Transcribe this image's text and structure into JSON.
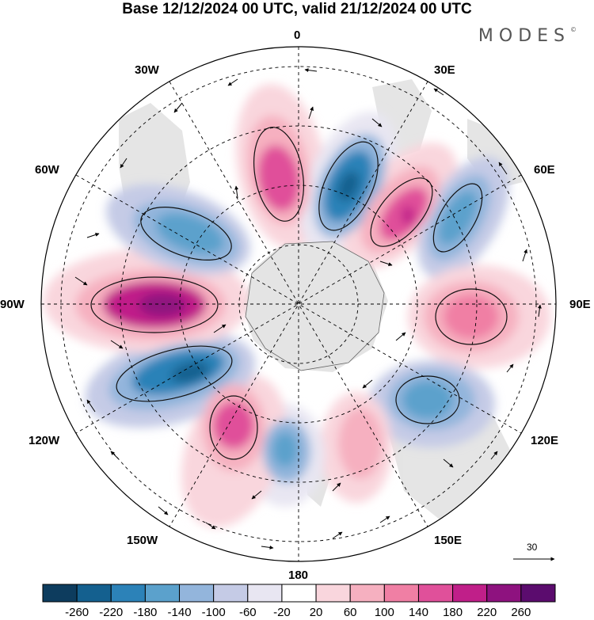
{
  "title": "Base 12/12/2024 00 UTC, valid 21/12/2024 00 UTC",
  "brand": "MODES",
  "brand_mark": "©",
  "meridian_labels": {
    "m0": "0",
    "m30e": "30E",
    "m60e": "60E",
    "m90e": "90E",
    "m120e": "120E",
    "m150e": "150E",
    "m180": "180",
    "m150w": "150W",
    "m120w": "120W",
    "m90w": "90W",
    "m60w": "60W",
    "m30w": "30W"
  },
  "reference_vector": "30",
  "colorbar": {
    "labels": [
      "-260",
      "-220",
      "-180",
      "-140",
      "-100",
      "-60",
      "-20",
      "20",
      "60",
      "100",
      "140",
      "180",
      "220",
      "260"
    ],
    "colors": [
      "#0d3c5e",
      "#14608f",
      "#2c82b8",
      "#5ba1cc",
      "#93b5dc",
      "#c5cbe6",
      "#e8e6f2",
      "#ffffff",
      "#f9d6dd",
      "#f6b0c0",
      "#f07fa4",
      "#e0509a",
      "#c01f89",
      "#8e127f",
      "#5b0c6e"
    ]
  },
  "anomalies": [
    {
      "name": "high-0",
      "color": "#f07fa4",
      "value": 140
    },
    {
      "name": "low-20e",
      "color": "#2c82b8",
      "value": -180
    },
    {
      "name": "high-40e",
      "color": "#e0509a",
      "value": 180
    },
    {
      "name": "low-60e",
      "color": "#5ba1cc",
      "value": -140
    },
    {
      "name": "high-90e",
      "color": "#f07fa4",
      "value": 140
    },
    {
      "name": "low-120e",
      "color": "#5ba1cc",
      "value": -140
    },
    {
      "name": "high-150e",
      "color": "#f6b0c0",
      "value": 100
    },
    {
      "name": "low-175e",
      "color": "#5ba1cc",
      "value": -140
    },
    {
      "name": "high-150w",
      "color": "#e0509a",
      "value": 180
    },
    {
      "name": "low-115w",
      "color": "#2c82b8",
      "value": -180
    },
    {
      "name": "high-90w",
      "color": "#8e127f",
      "value": 260
    },
    {
      "name": "low-60w",
      "color": "#5ba1cc",
      "value": -140
    }
  ]
}
